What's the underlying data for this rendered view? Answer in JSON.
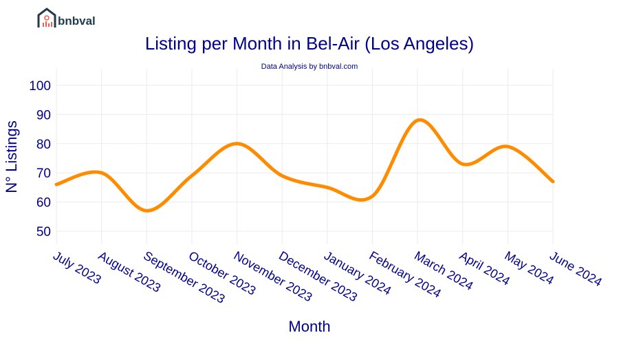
{
  "logo": {
    "text": "bnbval"
  },
  "chart_data": {
    "type": "line",
    "title": "Listing per Month in Bel-Air (Los Angeles)",
    "subtitle": "Data Analysis by bnbval.com",
    "xlabel": "Month",
    "ylabel": "N° Listings",
    "categories": [
      "July 2023",
      "August 2023",
      "September 2023",
      "October 2023",
      "November 2023",
      "December 2023",
      "January 2024",
      "February 2024",
      "March 2024",
      "April 2024",
      "May 2024",
      "June 2024"
    ],
    "values": [
      66,
      70,
      57,
      69,
      80,
      69,
      65,
      62,
      88,
      73,
      79,
      67
    ],
    "yticks": [
      50,
      60,
      70,
      80,
      90,
      100
    ],
    "ylim": [
      45.5,
      105
    ],
    "grid": true,
    "line_color": "#ff8c00",
    "text_color": "#00008b"
  }
}
